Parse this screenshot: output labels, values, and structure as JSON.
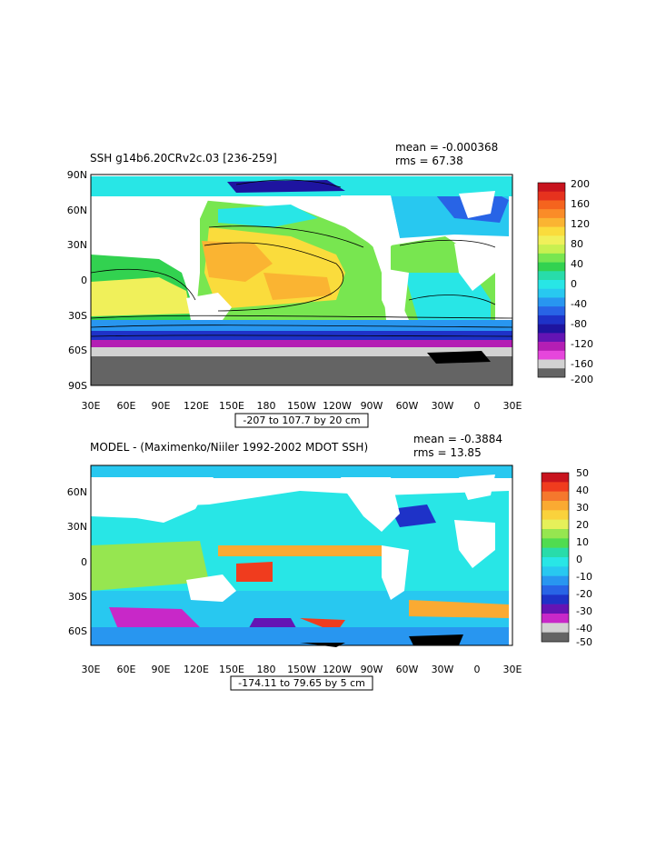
{
  "panels": [
    {
      "id": "top",
      "title": "SSH g14b6.20CRv2c.03 [236-259]",
      "stats": {
        "mean": "mean = -0.000368",
        "rms": "rms = 67.38"
      },
      "range_caption": "-207 to 107.7 by 20 cm",
      "lat_labels": [
        "90N",
        "60N",
        "30N",
        "0",
        "30S",
        "60S",
        "90S"
      ],
      "lon_labels": [
        "30E",
        "60E",
        "90E",
        "120E",
        "150E",
        "180",
        "150W",
        "120W",
        "90W",
        "60W",
        "30W",
        "0",
        "30E"
      ],
      "colorbar": {
        "labels": [
          "200",
          "160",
          "120",
          "80",
          "40",
          "0",
          "-40",
          "-80",
          "-120",
          "-160",
          "-200"
        ],
        "colors": [
          "#c8141e",
          "#e6321e",
          "#f5641e",
          "#fa8c28",
          "#fab432",
          "#fadc3c",
          "#f0f05a",
          "#c8f050",
          "#78e650",
          "#32d250",
          "#28dcaa",
          "#28e6e6",
          "#28c8f0",
          "#2896f0",
          "#2864e6",
          "#1e32c8",
          "#1e14a0",
          "#6414b4",
          "#b41eb4",
          "#e646dc",
          "#d2d2d2",
          "#646464"
        ]
      }
    },
    {
      "id": "bottom",
      "title": "MODEL - (Maximenko/Niiler 1992-2002 MDOT SSH)",
      "stats": {
        "mean": "mean = -0.3884",
        "rms": "rms = 13.85"
      },
      "range_caption": "-174.11 to 79.65 by 5 cm",
      "lat_labels": [
        "60N",
        "30N",
        "0",
        "30S",
        "60S"
      ],
      "lon_labels": [
        "30E",
        "60E",
        "90E",
        "120E",
        "150E",
        "180",
        "150W",
        "120W",
        "90W",
        "60W",
        "30W",
        "0",
        "30E"
      ],
      "colorbar": {
        "labels": [
          "50",
          "40",
          "30",
          "20",
          "10",
          "0",
          "-10",
          "-20",
          "-30",
          "-40",
          "-50"
        ],
        "colors": [
          "#c8141e",
          "#f03c1e",
          "#f5782d",
          "#faaa32",
          "#fad23c",
          "#e6f05a",
          "#96e650",
          "#50dc50",
          "#28dcaa",
          "#28e6e6",
          "#28c8f0",
          "#2896f0",
          "#2864e6",
          "#1e32c8",
          "#6414b4",
          "#c828c8",
          "#d2d2d2",
          "#646464"
        ]
      }
    }
  ],
  "colors": {
    "land": "#ffffff",
    "frame": "#000000",
    "subtropical_gyre": "#fab432",
    "tropics": "#fadc3c",
    "mid_ocean": "#78e650",
    "subpolar": "#28e6e6",
    "southern_ocean": "#2864e6",
    "antarctic_ice": "#646464"
  }
}
